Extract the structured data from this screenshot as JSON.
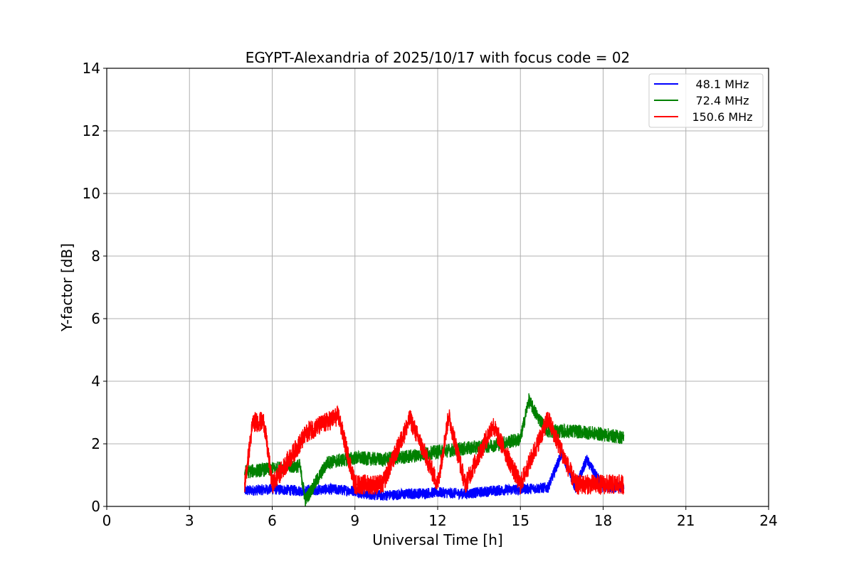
{
  "chart_data": {
    "type": "line",
    "title": "EGYPT-Alexandria of 2025/10/17 with focus code = 02",
    "xlabel": "Universal Time [h]",
    "ylabel": "Y-factor [dB]",
    "xlim": [
      0,
      24
    ],
    "ylim": [
      0,
      14
    ],
    "xticks": [
      "0",
      "3",
      "6",
      "9",
      "12",
      "15",
      "18",
      "21",
      "24"
    ],
    "yticks": [
      "0",
      "2",
      "4",
      "6",
      "8",
      "10",
      "12",
      "14"
    ],
    "grid": true,
    "legend_position": "top-right",
    "series": [
      {
        "name": "48.1 MHz",
        "color": "#0000ff",
        "x": [
          5.0,
          6.0,
          7.0,
          8.0,
          9.0,
          9.3,
          10.0,
          11.0,
          12.0,
          13.0,
          14.0,
          15.0,
          16.0,
          16.5,
          17.0,
          17.4,
          18.0,
          18.75
        ],
        "values": [
          0.5,
          0.55,
          0.5,
          0.55,
          0.5,
          0.4,
          0.35,
          0.4,
          0.45,
          0.4,
          0.5,
          0.55,
          0.6,
          1.7,
          0.6,
          1.5,
          0.6,
          0.6
        ]
      },
      {
        "name": "72.4 MHz",
        "color": "#008000",
        "x": [
          5.0,
          6.0,
          7.0,
          7.2,
          8.0,
          9.0,
          10.0,
          11.0,
          12.0,
          13.0,
          14.0,
          15.0,
          15.3,
          15.6,
          16.0,
          17.0,
          18.0,
          18.75
        ],
        "values": [
          1.1,
          1.2,
          1.3,
          0.2,
          1.4,
          1.55,
          1.5,
          1.6,
          1.75,
          1.85,
          1.95,
          2.15,
          3.4,
          2.9,
          2.4,
          2.4,
          2.3,
          2.2
        ]
      },
      {
        "name": "150.6 MHz",
        "color": "#ff0000",
        "x": [
          5.0,
          5.3,
          5.7,
          6.0,
          7.3,
          8.0,
          8.4,
          9.0,
          10.0,
          11.0,
          12.0,
          12.4,
          13.0,
          14.0,
          15.0,
          16.0,
          17.0,
          18.0,
          18.75
        ],
        "values": [
          0.7,
          2.7,
          2.7,
          0.7,
          2.4,
          2.7,
          2.9,
          0.7,
          0.7,
          2.8,
          0.7,
          2.9,
          0.7,
          2.6,
          0.7,
          2.8,
          0.7,
          0.7,
          0.7
        ]
      }
    ]
  }
}
